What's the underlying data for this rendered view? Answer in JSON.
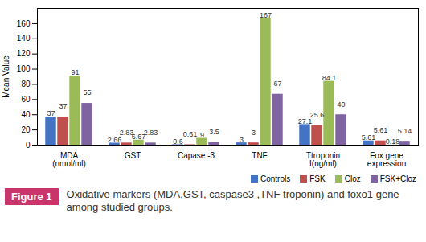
{
  "chart_data": {
    "type": "bar",
    "y_label": "Mean Value",
    "categories": [
      "MDA (nmol/ml)",
      "GST",
      "Capase -3",
      "TNF",
      "Ttroponin I(ng/ml)",
      "Fox gene expression"
    ],
    "series": [
      {
        "name": "Controls",
        "color": "#4472c4",
        "values": [
          37,
          2.66,
          0.6,
          3,
          27.1,
          5.61
        ]
      },
      {
        "name": "FSK",
        "color": "#c0504d",
        "values": [
          37,
          2.83,
          0.61,
          3,
          25.6,
          5.61
        ]
      },
      {
        "name": "Cloz",
        "color": "#9bbb59",
        "values": [
          91,
          6.67,
          9,
          167,
          84.1,
          0.18
        ]
      },
      {
        "name": "FSK+Cloz",
        "color": "#8064a2",
        "values": [
          55,
          2.83,
          3.5,
          67,
          40,
          5.14
        ]
      }
    ],
    "ylim": [
      0,
      180
    ],
    "yticks": [
      0,
      20,
      40,
      60,
      80,
      100,
      120,
      140,
      160
    ],
    "grid": false,
    "legend": "bottom",
    "data_labels": true,
    "figure_label": "Figure 1",
    "caption": "Oxidative markers (MDA,GST, caspase3 ,TNF troponin) and foxo1 gene among studied groups."
  }
}
